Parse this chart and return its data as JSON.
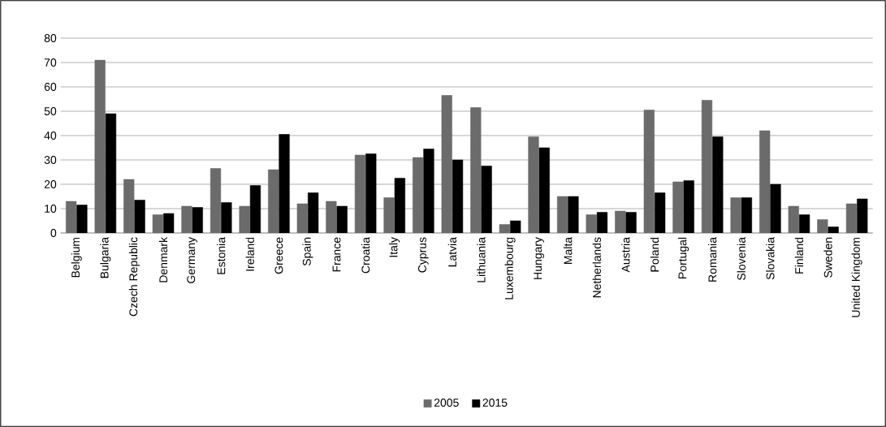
{
  "chart_data": {
    "type": "bar",
    "categories": [
      "Belgium",
      "Bulgaria",
      "Czech Republic",
      "Denmark",
      "Germany",
      "Estonia",
      "Ireland",
      "Greece",
      "Spain",
      "France",
      "Croatia",
      "Italy",
      "Cyprus",
      "Latvia",
      "Lithuania",
      "Luxembourg",
      "Hungary",
      "Malta",
      "Netherlands",
      "Austria",
      "Poland",
      "Portugal",
      "Romania",
      "Slovenia",
      "Slovakia",
      "Finland",
      "Sweden",
      "United Kingdom"
    ],
    "series": [
      {
        "name": "2005",
        "color": "#6b6b6b",
        "values": [
          13,
          71,
          22,
          7.5,
          11,
          26.5,
          11,
          26,
          12,
          13,
          32,
          14.5,
          31,
          56.5,
          51.5,
          3.5,
          39.5,
          15,
          7.5,
          9,
          50.5,
          21,
          54.5,
          14.5,
          42,
          11,
          5.5,
          12
        ]
      },
      {
        "name": "2015",
        "color": "#000000",
        "values": [
          11.5,
          49,
          13.5,
          8,
          10.5,
          12.5,
          19.5,
          40.5,
          16.5,
          11,
          32.5,
          22.5,
          34.5,
          30,
          27.5,
          5,
          35,
          15,
          8.5,
          8.5,
          16.5,
          21.5,
          39.5,
          14.5,
          20,
          7.5,
          2.5,
          14
        ]
      }
    ],
    "ylim": [
      0,
      80
    ],
    "yticks": [
      0,
      10,
      20,
      30,
      40,
      50,
      60,
      70,
      80
    ],
    "grid": "y",
    "legend": "bottom"
  }
}
